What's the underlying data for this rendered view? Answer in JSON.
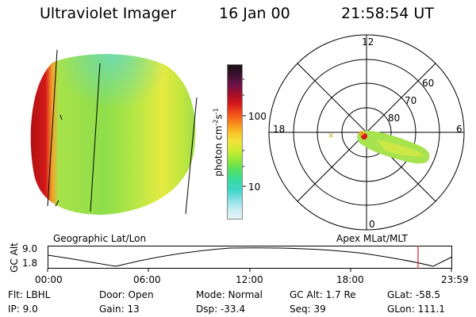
{
  "header": {
    "title": "Ultraviolet Imager",
    "date": "16 Jan 00",
    "time": "21:58:54 UT"
  },
  "colorbar": {
    "label": "photon cm-2s-1",
    "label_main": "photon cm",
    "label_exp1": "-2",
    "label_mid": "s",
    "label_exp2": "-1",
    "ticks": [
      "100",
      "10"
    ],
    "colors": [
      "#1a0f14",
      "#3a1230",
      "#6a1248",
      "#a0102a",
      "#d4161c",
      "#ef4a1a",
      "#f7861c",
      "#fac02a",
      "#f0e43a",
      "#c8ec30",
      "#8ee63c",
      "#52e066",
      "#36dca0",
      "#3cd6c8",
      "#86dfe4",
      "#c6ecf2",
      "#e6f4f6"
    ]
  },
  "left_panel": {
    "caption": "Geographic Lat/Lon"
  },
  "right_panel": {
    "caption": "Apex MLat/MLT",
    "mlt_labels": [
      "12",
      "18",
      "6",
      "0"
    ],
    "mlat_labels": [
      "60",
      "70",
      "80"
    ]
  },
  "timeline": {
    "axis_label": "GC Alt",
    "y_ticks": [
      "9.0",
      "1.8"
    ],
    "x_ticks": [
      "00:00",
      "06:00",
      "12:00",
      "18:00",
      "23:59"
    ]
  },
  "info": {
    "flt": "Flt: LBHL",
    "ip": "IP: 9.0",
    "door": "Door: Open",
    "gain": "Gain: 13",
    "mode": "Mode: Normal",
    "dsp": "Dsp: -33.4",
    "gc_alt": "GC Alt: 1.7 Re",
    "seq": "Seq: 39",
    "glat": "GLat: -58.5",
    "glon": "GLon: 111.1"
  },
  "colors": {
    "timeline_marker": "#e0202a",
    "aurora_green": "#9ee05a",
    "aurora_yellow": "#f2e038",
    "aurora_red": "#c01414"
  }
}
